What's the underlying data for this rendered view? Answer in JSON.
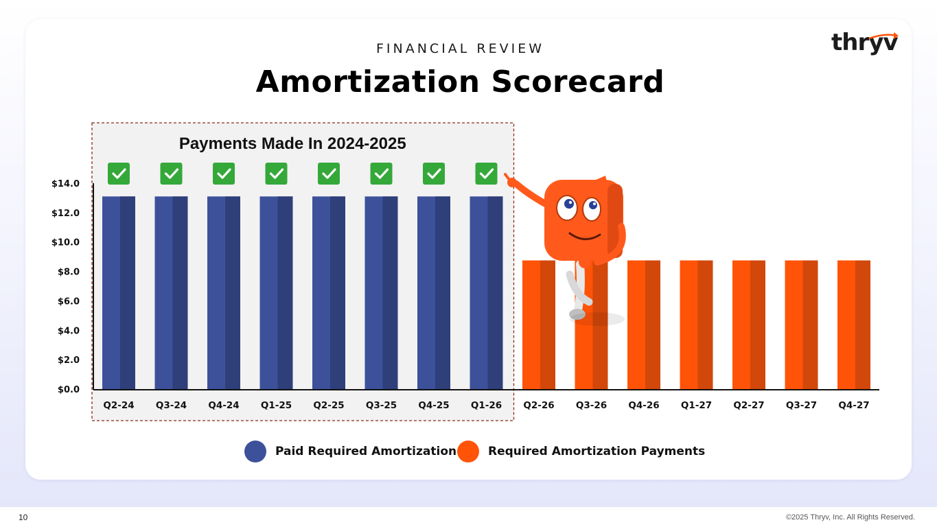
{
  "slide": {
    "eyebrow": "FINANCIAL REVIEW",
    "title": "Amortization Scorecard",
    "logo": "thryv",
    "page_number": "10",
    "copyright": "©2025 Thryv, Inc. All Rights Reserved."
  },
  "chart_data": {
    "type": "bar",
    "title": "",
    "xlabel": "",
    "ylabel": "",
    "ylim": [
      0,
      14
    ],
    "yticks": [
      "$0.0",
      "$2.0",
      "$4.0",
      "$6.0",
      "$8.0",
      "$10.0",
      "$12.0",
      "$14.0"
    ],
    "categories": [
      "Q2-24",
      "Q3-24",
      "Q4-24",
      "Q1-25",
      "Q2-25",
      "Q3-25",
      "Q4-25",
      "Q1-26",
      "Q2-26",
      "Q3-26",
      "Q4-26",
      "Q1-27",
      "Q2-27",
      "Q3-27",
      "Q4-27"
    ],
    "values": [
      13.1,
      13.1,
      13.1,
      13.1,
      13.1,
      13.1,
      13.1,
      13.1,
      8.75,
      8.75,
      8.75,
      8.75,
      8.75,
      8.75,
      8.75
    ],
    "series": [
      {
        "name": "Paid Required Amortization",
        "color": "#3d519b",
        "shade": "#2f3f7a",
        "count": 8
      },
      {
        "name": "Required Amortization Payments",
        "color": "#ff5308",
        "shade": "#d2470a",
        "count": 7
      }
    ],
    "highlight_box": {
      "label": "Payments Made In 2024-2025",
      "from_category": "Q2-24",
      "to_category": "Q1-26"
    },
    "check_color": "#35a83a",
    "legend_position": "bottom-center"
  }
}
